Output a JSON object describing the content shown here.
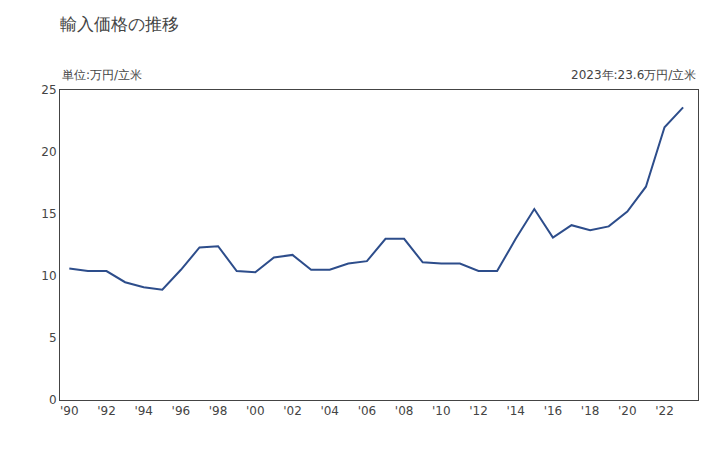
{
  "chart_data": {
    "type": "line",
    "title": "輸入価格の推移",
    "ylabel": "単位:万円/立米",
    "annotation": "2023年:23.6万円/立米",
    "x": [
      1990,
      1991,
      1992,
      1993,
      1994,
      1995,
      1996,
      1997,
      1998,
      1999,
      2000,
      2001,
      2002,
      2003,
      2004,
      2005,
      2006,
      2007,
      2008,
      2009,
      2010,
      2011,
      2012,
      2013,
      2014,
      2015,
      2016,
      2017,
      2018,
      2019,
      2020,
      2021,
      2022,
      2023
    ],
    "values": [
      10.6,
      10.4,
      10.4,
      9.5,
      9.1,
      8.9,
      10.5,
      12.3,
      12.4,
      10.4,
      10.3,
      11.5,
      11.7,
      10.5,
      10.5,
      11.0,
      11.2,
      13.0,
      13.0,
      11.1,
      11.0,
      11.0,
      10.4,
      10.4,
      13.0,
      15.4,
      13.1,
      14.1,
      13.7,
      14.0,
      15.2,
      17.2,
      22.0,
      23.6
    ],
    "color": "#2d4d8b",
    "xlim": [
      1989.5,
      2023.8
    ],
    "xticks": [
      {
        "value": 1990,
        "label": "'90"
      },
      {
        "value": 1992,
        "label": "'92"
      },
      {
        "value": 1994,
        "label": "'94"
      },
      {
        "value": 1996,
        "label": "'96"
      },
      {
        "value": 1998,
        "label": "'98"
      },
      {
        "value": 2000,
        "label": "'00"
      },
      {
        "value": 2002,
        "label": "'02"
      },
      {
        "value": 2004,
        "label": "'04"
      },
      {
        "value": 2006,
        "label": "'06"
      },
      {
        "value": 2008,
        "label": "'08"
      },
      {
        "value": 2010,
        "label": "'10"
      },
      {
        "value": 2012,
        "label": "'12"
      },
      {
        "value": 2014,
        "label": "'14"
      },
      {
        "value": 2016,
        "label": "'16"
      },
      {
        "value": 2018,
        "label": "'18"
      },
      {
        "value": 2020,
        "label": "'20"
      },
      {
        "value": 2022,
        "label": "'22"
      }
    ],
    "ylim": [
      0,
      25
    ],
    "yticks": [
      0,
      5,
      10,
      15,
      20,
      25
    ],
    "grid": false
  }
}
